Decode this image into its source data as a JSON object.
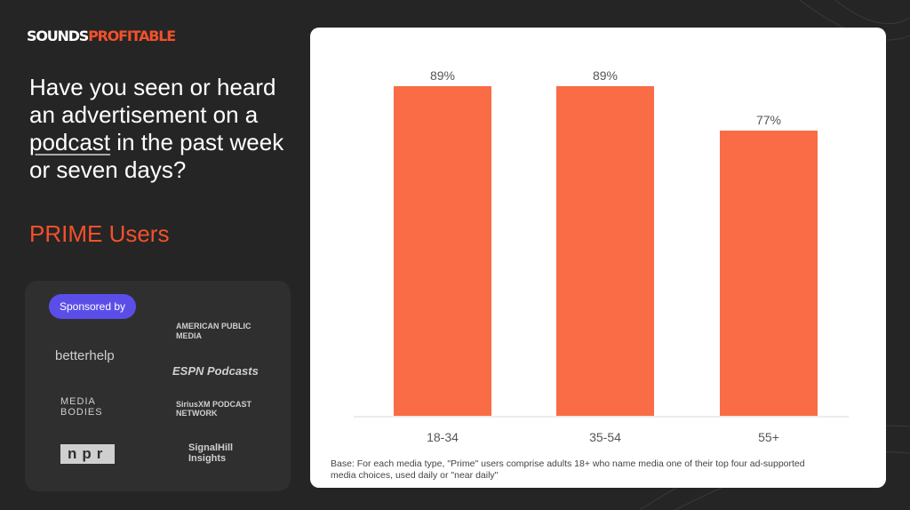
{
  "brand": {
    "part1": "SOUNDS",
    "part2": "PROFITABLE"
  },
  "question": {
    "before": "Have you seen or heard an advertisement on a ",
    "underlined": "podcast",
    "after": " in the past week or seven days?"
  },
  "segment": "PRIME Users",
  "sponsors": {
    "label": "Sponsored by",
    "logos": [
      "betterhelp",
      "AMERICAN PUBLIC MEDIA",
      "ESPN Podcasts",
      "MEDIA BODIES",
      "SiriusXM PODCAST NETWORK",
      "npr",
      "SignalHill Insights"
    ]
  },
  "colors": {
    "background": "#252525",
    "accent": "#f2512b",
    "bar": "#f96c45",
    "pill": "#5b4ee8"
  },
  "chart_data": {
    "type": "bar",
    "categories": [
      "18-34",
      "35-54",
      "55+"
    ],
    "values": [
      89,
      89,
      77
    ],
    "data_labels": [
      "89%",
      "89%",
      "77%"
    ],
    "ylim": [
      0,
      89
    ],
    "grid": false,
    "note": "Base: For each media type, \"Prime\" users comprise adults 18+ who name media one of their top four ad-supported media choices, used daily or \"near daily\""
  }
}
